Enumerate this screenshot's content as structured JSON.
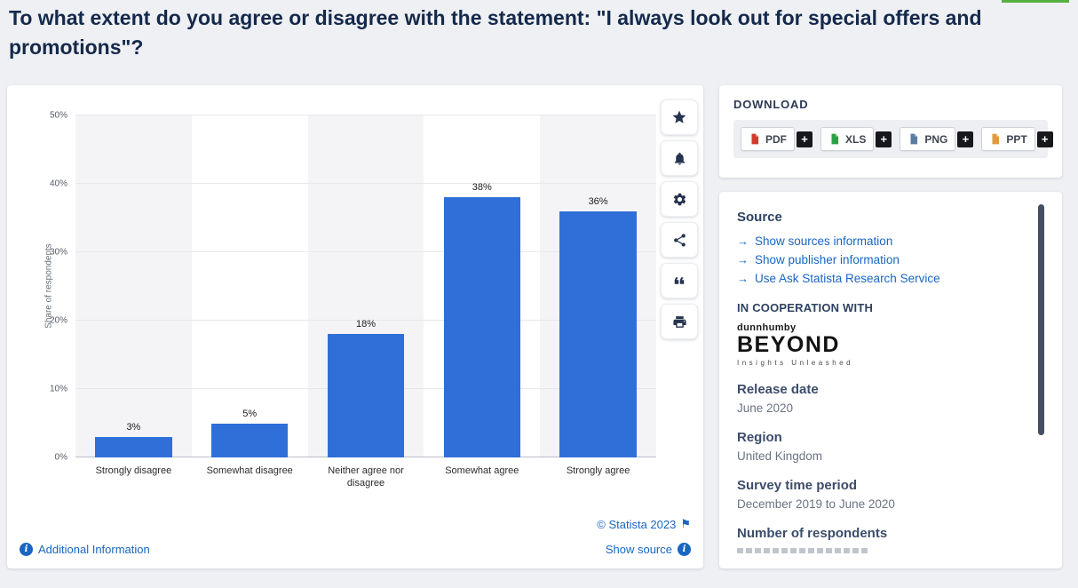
{
  "colors": {
    "bar": "#2f6fd8",
    "link": "#1966c2",
    "title": "#15294b",
    "green_bar": "#55b13f"
  },
  "icons": {
    "arrow": "→",
    "flag": "⚑",
    "info": "i",
    "plus": "+"
  },
  "page": {
    "title": "To what extent do you agree or disagree with the statement: \"I always look out for special offers and promotions\"?"
  },
  "chart_data": {
    "type": "bar",
    "title": "To what extent do you agree or disagree with the statement: \"I always look out for special offers and promotions\"?",
    "categories": [
      "Strongly disagree",
      "Somewhat disagree",
      "Neither agree nor disagree",
      "Somewhat agree",
      "Strongly agree"
    ],
    "values": [
      3,
      5,
      18,
      38,
      36
    ],
    "value_labels": [
      "3%",
      "5%",
      "18%",
      "38%",
      "36%"
    ],
    "xlabel": "",
    "ylabel": "Share of respondents",
    "ylim": [
      0,
      50
    ],
    "yticks": [
      0,
      10,
      20,
      30,
      40,
      50
    ],
    "ytick_labels": [
      "0%",
      "10%",
      "20%",
      "30%",
      "40%",
      "50%"
    ],
    "grid": true,
    "legend": false,
    "bar_color": "#2f6fd8"
  },
  "chart_footer": {
    "additional_information": "Additional Information",
    "copyright": "© Statista 2023",
    "show_source": "Show source"
  },
  "toolbar": {
    "icons": [
      "star-icon",
      "bell-icon",
      "gear-icon",
      "share-icon",
      "quote-icon",
      "print-icon"
    ]
  },
  "download": {
    "title": "DOWNLOAD",
    "formats": [
      {
        "label": "PDF"
      },
      {
        "label": "XLS"
      },
      {
        "label": "PNG"
      },
      {
        "label": "PPT"
      }
    ]
  },
  "sidebar": {
    "source_heading": "Source",
    "links": [
      "Show sources information",
      "Show publisher information",
      "Use Ask Statista Research Service"
    ],
    "cooperation_heading": "IN COOPERATION WITH",
    "logo": {
      "brand": "dunnhumby",
      "name": "BEYOND",
      "tagline": "Insights Unleashed"
    },
    "fields": [
      {
        "label": "Release date",
        "value": "June 2020"
      },
      {
        "label": "Region",
        "value": "United Kingdom"
      },
      {
        "label": "Survey time period",
        "value": "December 2019 to June 2020"
      },
      {
        "label": "Number of respondents",
        "value": ""
      }
    ]
  }
}
